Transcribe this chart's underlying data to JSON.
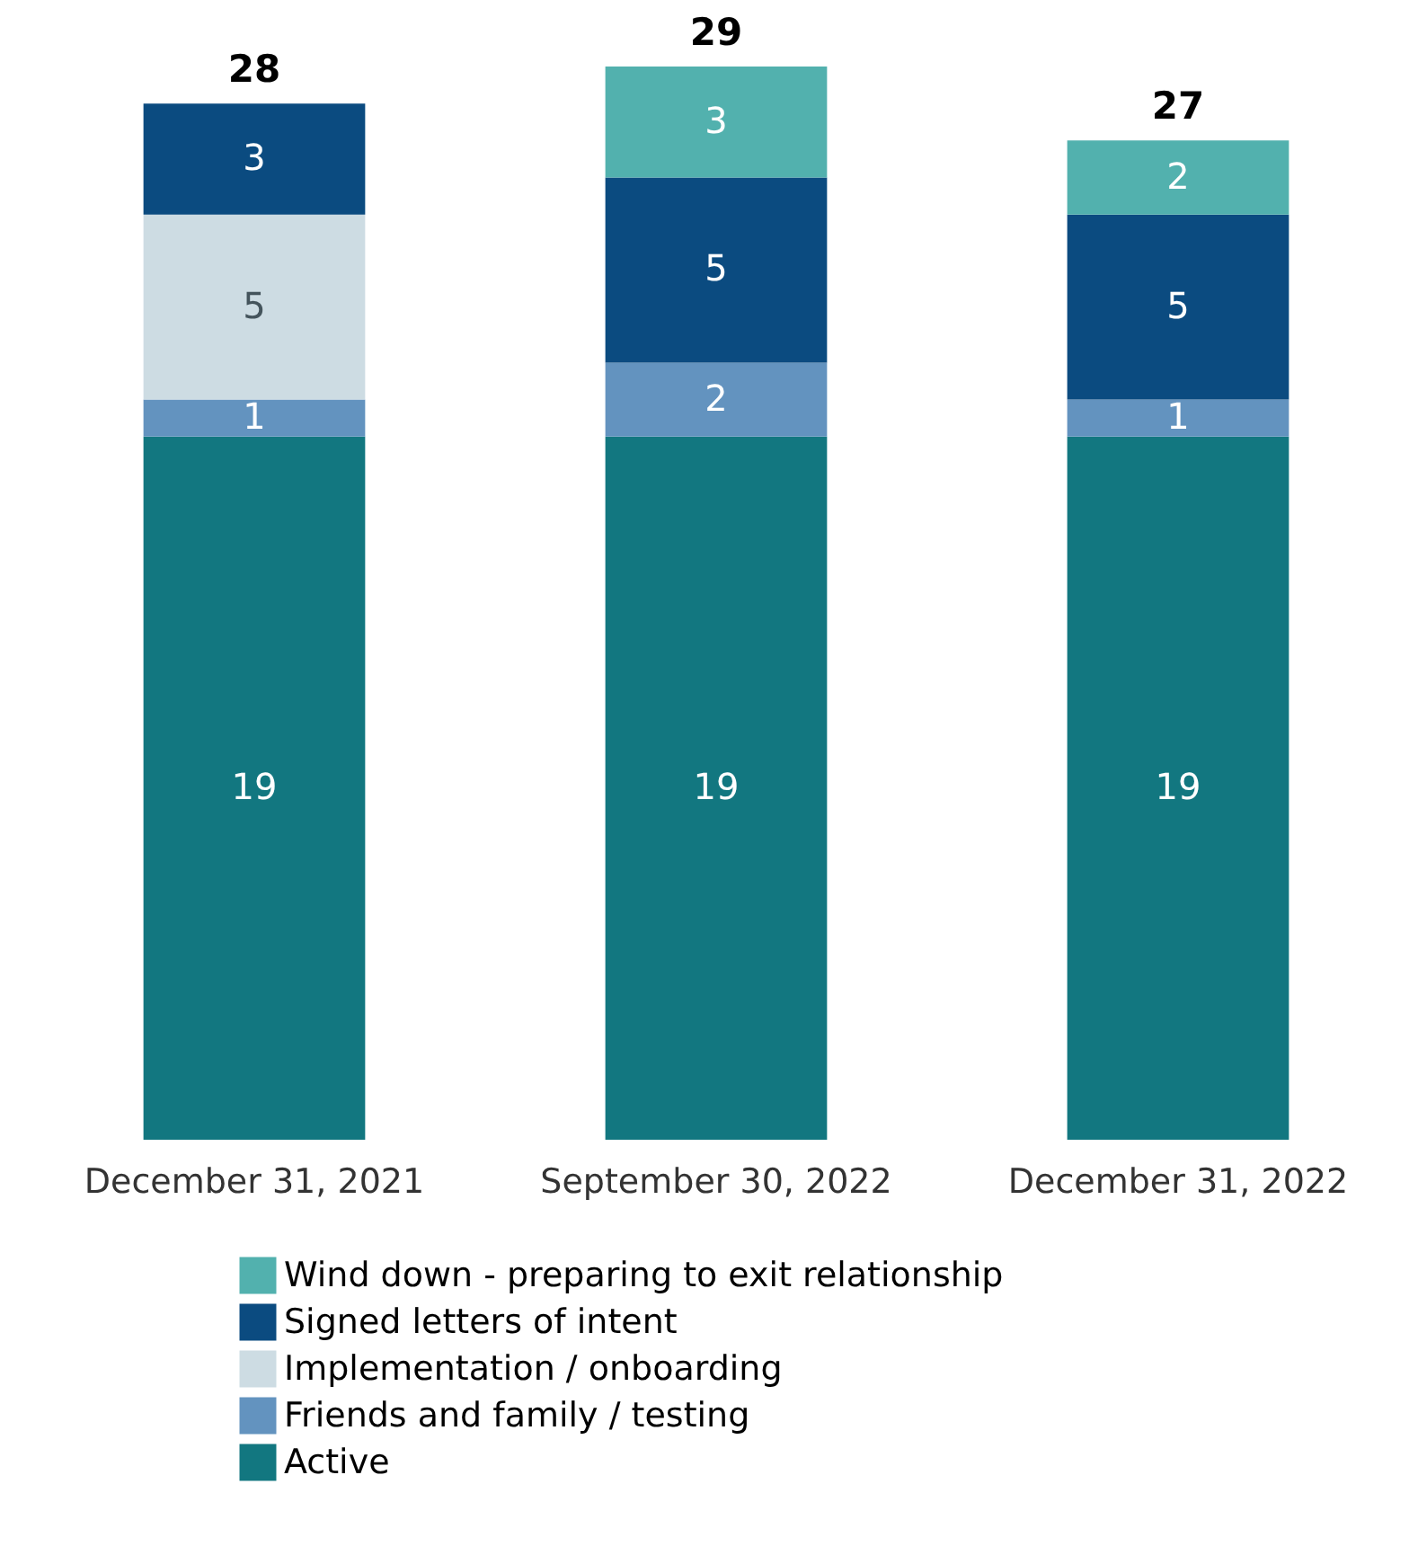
{
  "chart_data": {
    "type": "bar",
    "stacked": true,
    "categories": [
      "December 31, 2021",
      "September 30, 2022",
      "December 31, 2022"
    ],
    "series": [
      {
        "name": "Active",
        "color": "#127780",
        "values": [
          19,
          19,
          19
        ]
      },
      {
        "name": "Friends and family / testing",
        "color": "#6393bf",
        "values": [
          1,
          2,
          1
        ]
      },
      {
        "name": "Implementation / onboarding",
        "color": "#cddce3",
        "values": [
          5,
          null,
          null
        ]
      },
      {
        "name": "Signed letters of intent",
        "color": "#0b4b80",
        "values": [
          3,
          5,
          5
        ]
      },
      {
        "name": "Wind down - preparing to exit relationship",
        "color": "#52b1ae",
        "values": [
          null,
          3,
          2
        ]
      }
    ],
    "data_labels": true,
    "totals": [
      "28",
      "29",
      "27"
    ],
    "legend": "bottom",
    "grid": false
  }
}
